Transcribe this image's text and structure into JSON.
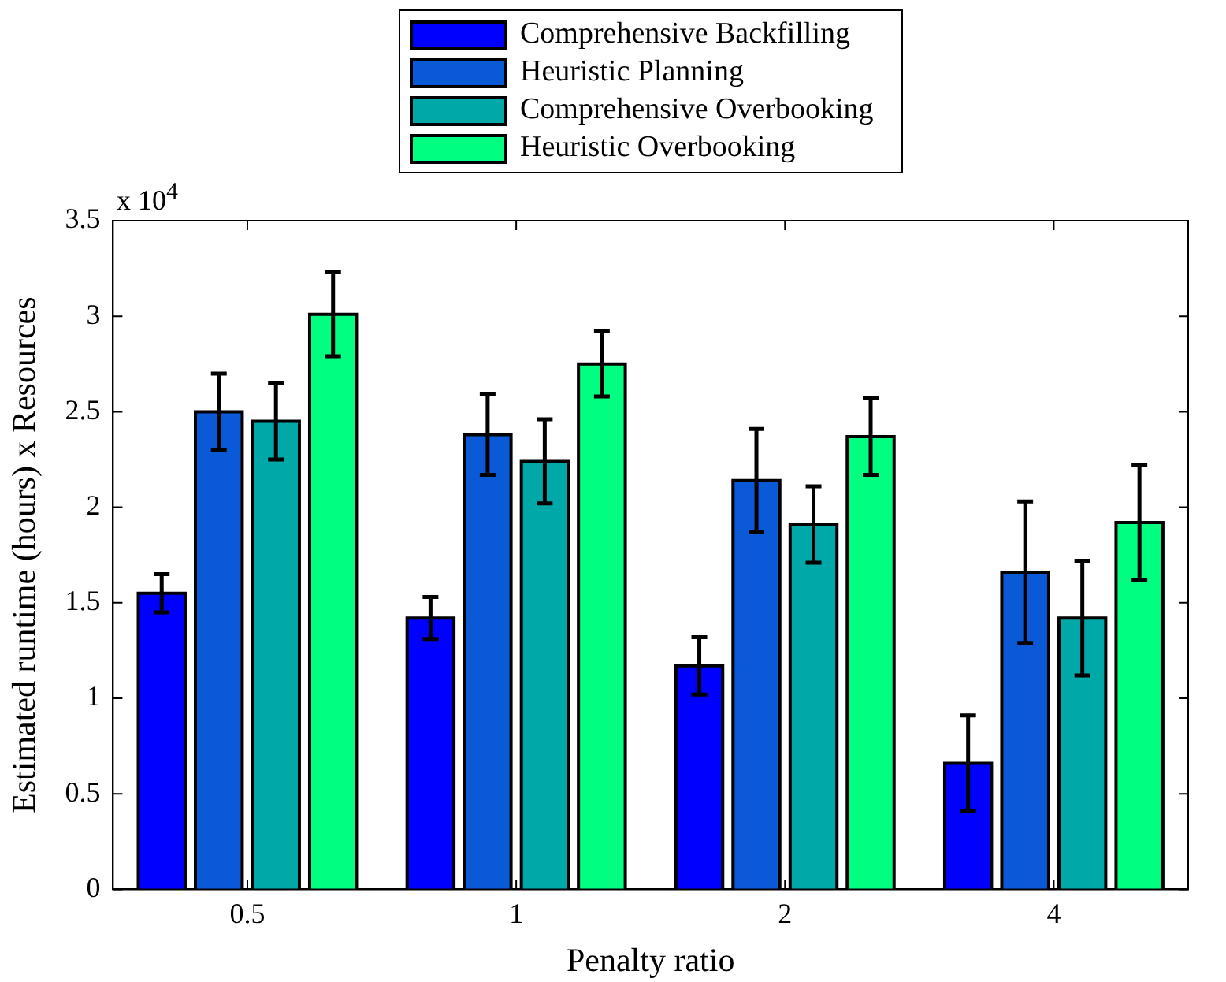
{
  "chart_data": {
    "type": "bar",
    "xlabel": "Penalty ratio",
    "ylabel": "Estimated runtime (hours) x Resources",
    "annotations": [
      "x 10$^{4}$"
    ],
    "categories": [
      "0.5",
      "1",
      "2",
      "4"
    ],
    "series": [
      {
        "name": "Comprehensive Backfilling",
        "color": "#0000ff",
        "values": [
          1.55,
          1.42,
          1.17,
          0.66
        ],
        "errors": [
          0.1,
          0.11,
          0.15,
          0.25
        ]
      },
      {
        "name": "Heuristic Planning",
        "color": "#0a5ad8",
        "values": [
          2.5,
          2.38,
          2.14,
          1.66
        ],
        "errors": [
          0.2,
          0.21,
          0.27,
          0.37
        ]
      },
      {
        "name": "Comprehensive Overbooking",
        "color": "#00a8a8",
        "values": [
          2.45,
          2.24,
          1.91,
          1.42
        ],
        "errors": [
          0.2,
          0.22,
          0.2,
          0.3
        ]
      },
      {
        "name": "Heuristic Overbooking",
        "color": "#00ff80",
        "values": [
          3.01,
          2.75,
          2.37,
          1.92
        ],
        "errors": [
          0.22,
          0.17,
          0.2,
          0.3
        ]
      }
    ],
    "ylim": [
      0,
      3.5
    ],
    "yticks": [
      0,
      0.5,
      1,
      1.5,
      2,
      2.5,
      3,
      3.5
    ],
    "grid": false,
    "legend": "top"
  }
}
